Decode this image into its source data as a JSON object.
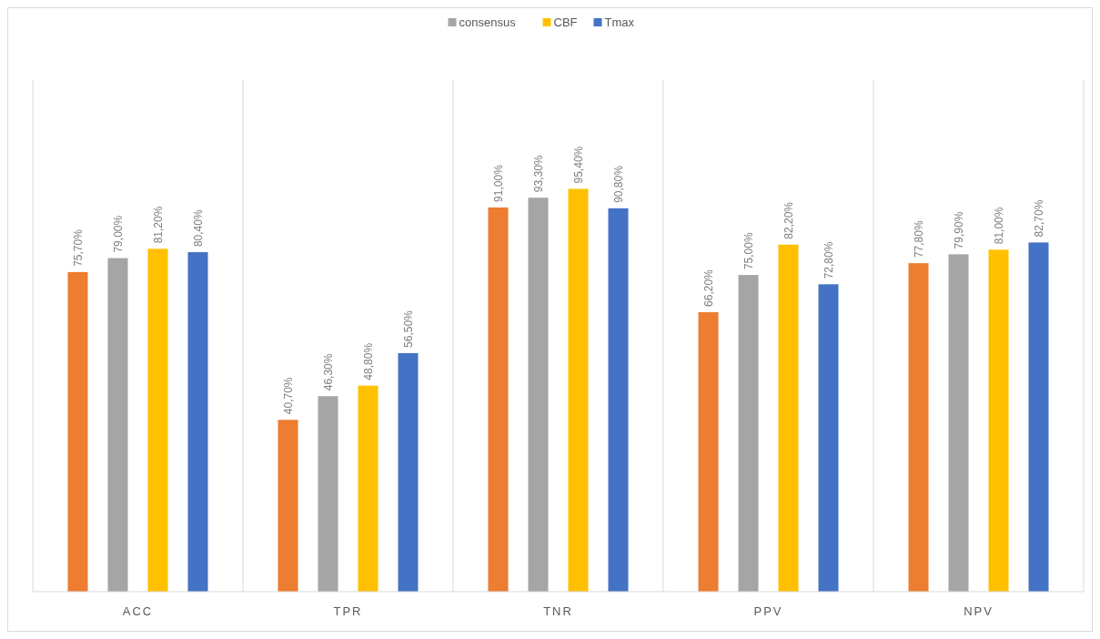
{
  "chart_data": {
    "type": "bar",
    "categories": [
      "ACC",
      "TPR",
      "TNR",
      "PPV",
      "NPV"
    ],
    "series": [
      {
        "color": "#ed7d31",
        "values": [
          75.7,
          40.7,
          91.0,
          66.2,
          77.8
        ],
        "value_labels": [
          "75,70%",
          "40,70%",
          "91,00%",
          "66,20%",
          "77,80%"
        ]
      },
      {
        "name": "consensus",
        "color": "#a5a5a5",
        "values": [
          79.0,
          46.3,
          93.3,
          75.0,
          79.9
        ],
        "value_labels": [
          "79,00%",
          "46,30%",
          "93,30%",
          "75,00%",
          "79,90%"
        ]
      },
      {
        "name": "CBF",
        "color": "#ffc000",
        "values": [
          81.2,
          48.8,
          95.4,
          82.2,
          81.0
        ],
        "value_labels": [
          "81,20%",
          "48,80%",
          "95,40%",
          "82,20%",
          "81,00%"
        ]
      },
      {
        "name": "Tmax",
        "color": "#4472c4",
        "values": [
          80.4,
          56.5,
          90.8,
          72.8,
          82.7
        ],
        "value_labels": [
          "80,40%",
          "56,50%",
          "90,80%",
          "72,80%",
          "82,70%"
        ]
      }
    ],
    "grid": "x",
    "legend": "top"
  }
}
